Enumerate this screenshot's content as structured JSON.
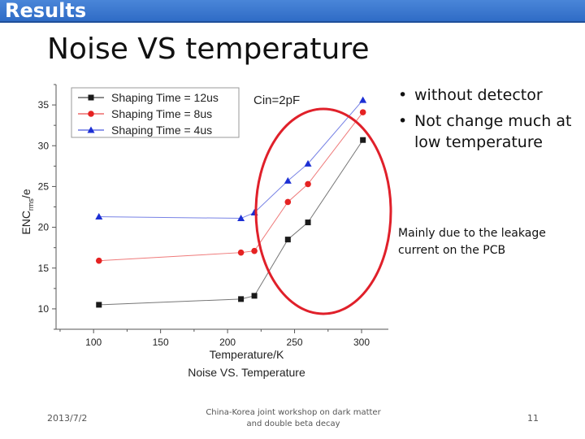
{
  "header": {
    "section": "Results"
  },
  "slide": {
    "title": "Noise VS temperature",
    "bullets": [
      "without detector",
      "Not change much at low temperature"
    ],
    "note": "Mainly due to the leakage current on the PCB"
  },
  "footer": {
    "date": "2013/7/2",
    "event": "China-Korea joint workshop on dark matter and double beta decay",
    "page": "11"
  },
  "colors": {
    "header": "#3a78d0",
    "ellipse": "#e0202a"
  },
  "chart_data": {
    "type": "line",
    "title": "Noise VS. Temperature",
    "xlabel": "Temperature/K",
    "ylabel": "ENC",
    "ylabel_sub": "rms",
    "ylabel_suffix": "/e",
    "annotation": "Cin=2pF",
    "xlim": [
      72,
      320
    ],
    "ylim": [
      7.5,
      37.5
    ],
    "xticks": [
      100,
      150,
      200,
      250,
      300
    ],
    "yticks": [
      10,
      15,
      20,
      25,
      30,
      35
    ],
    "legend_position": "top-left",
    "grid": false,
    "series": [
      {
        "name": "Shaping Time = 12us",
        "color": "#1a1a1a",
        "marker": "square",
        "x": [
          104,
          210,
          220,
          245,
          260,
          301
        ],
        "y": [
          10.5,
          11.2,
          11.6,
          18.5,
          20.6,
          30.7
        ]
      },
      {
        "name": "Shaping Time = 8us",
        "color": "#e52222",
        "marker": "circle",
        "x": [
          104,
          210,
          220,
          245,
          260,
          301
        ],
        "y": [
          15.9,
          16.9,
          17.1,
          23.1,
          25.3,
          34.1
        ]
      },
      {
        "name": "Shaping Time = 4us",
        "color": "#1c2fd4",
        "marker": "triangle",
        "x": [
          104,
          210,
          220,
          245,
          260,
          301
        ],
        "y": [
          21.3,
          21.1,
          21.8,
          25.7,
          27.8,
          35.6
        ]
      }
    ]
  }
}
